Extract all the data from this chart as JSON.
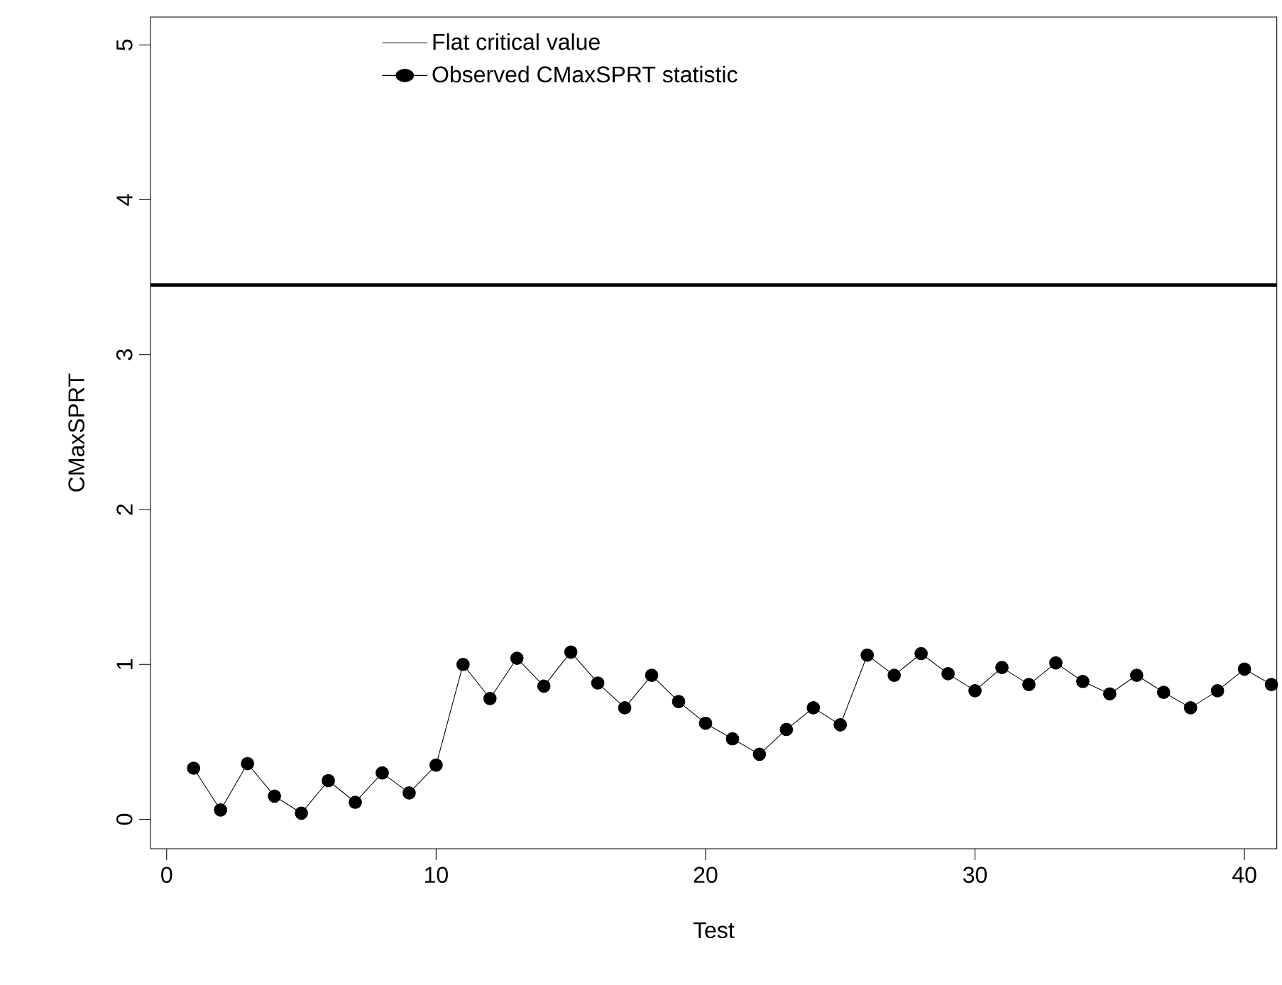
{
  "chart_data": {
    "type": "line",
    "xlabel": "Test",
    "ylabel": "CMaxSPRT",
    "x": [
      1,
      2,
      3,
      4,
      5,
      6,
      7,
      8,
      9,
      10,
      11,
      12,
      13,
      14,
      15,
      16,
      17,
      18,
      19,
      20,
      21,
      22,
      23,
      24,
      25,
      26,
      27,
      28,
      29,
      30,
      31,
      32,
      33,
      34,
      35,
      36,
      37,
      38,
      39,
      40,
      41
    ],
    "series": [
      {
        "name": "Observed CMaxSPRT statistic",
        "color": "#000000",
        "values": [
          0.33,
          0.06,
          0.36,
          0.15,
          0.04,
          0.25,
          0.11,
          0.3,
          0.17,
          0.35,
          1.0,
          0.78,
          1.04,
          0.86,
          1.08,
          0.88,
          0.72,
          0.93,
          0.76,
          0.62,
          0.52,
          0.42,
          0.58,
          0.72,
          0.61,
          1.06,
          0.93,
          1.07,
          0.94,
          0.83,
          0.98,
          0.87,
          1.01,
          0.89,
          0.81,
          0.93,
          0.82,
          0.72,
          0.83,
          0.97,
          0.87
        ]
      }
    ],
    "ref_lines": [
      {
        "axis": "y",
        "value": 3.45,
        "label": "Flat critical value",
        "color": "#000000",
        "line_style": "solid"
      }
    ],
    "marker": "circle",
    "line_style": "solid",
    "legend": "top",
    "grid": false,
    "xlim": [
      -0.6,
      41.2
    ],
    "ylim": [
      -0.19,
      5.18
    ],
    "xticks": [
      0,
      10,
      20,
      30,
      40
    ],
    "yticks": [
      0,
      1,
      2,
      3,
      4,
      5
    ]
  }
}
